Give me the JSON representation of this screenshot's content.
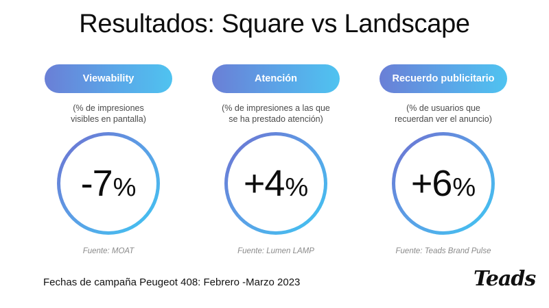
{
  "title": "Resultados: Square vs Landscape",
  "metrics": [
    {
      "label": "Viewability",
      "description_line1": "(% de impresiones",
      "description_line2": "visibles en pantalla)",
      "value": "-7",
      "unit": "%",
      "source": "Fuente: MOAT"
    },
    {
      "label": "Atención",
      "description_line1": "(% de impresiones a las que",
      "description_line2": "se ha prestado atención)",
      "value": "+4",
      "unit": "%",
      "source": "Fuente: Lumen LAMP"
    },
    {
      "label": "Recuerdo publicitario",
      "description_line1": "(% de usuarios que",
      "description_line2": "recuerdan ver el anuncio)",
      "value": "+6",
      "unit": "%",
      "source": "Fuente: Teads Brand Pulse"
    }
  ],
  "footer_note": "Fechas de campaña Peugeot 408: Febrero -Marzo 2023",
  "brand": "Teads",
  "colors": {
    "gradient_start": "#6a7fd6",
    "gradient_end": "#4fc3f0",
    "source_text": "#8a8a8a"
  }
}
